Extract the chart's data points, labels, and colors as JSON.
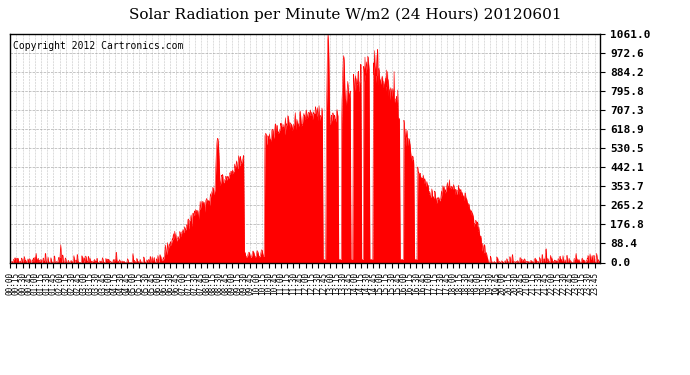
{
  "title": "Solar Radiation per Minute W/m2 (24 Hours) 20120601",
  "copyright_text": "Copyright 2012 Cartronics.com",
  "ytick_labels": [
    "0.0",
    "88.4",
    "176.8",
    "265.2",
    "353.7",
    "442.1",
    "530.5",
    "618.9",
    "707.3",
    "795.8",
    "884.2",
    "972.6",
    "1061.0"
  ],
  "ytick_values": [
    0.0,
    88.4,
    176.8,
    265.2,
    353.7,
    442.1,
    530.5,
    618.9,
    707.3,
    795.8,
    884.2,
    972.6,
    1061.0
  ],
  "ymax": 1061.0,
  "ymin": 0.0,
  "fill_color": "#ff0000",
  "line_color": "#ff0000",
  "bg_color": "#ffffff",
  "grid_color": "#999999",
  "dashed_line_color": "#ff0000",
  "title_fontsize": 11,
  "copyright_fontsize": 7,
  "tick_fontsize": 8,
  "total_minutes": 1440
}
